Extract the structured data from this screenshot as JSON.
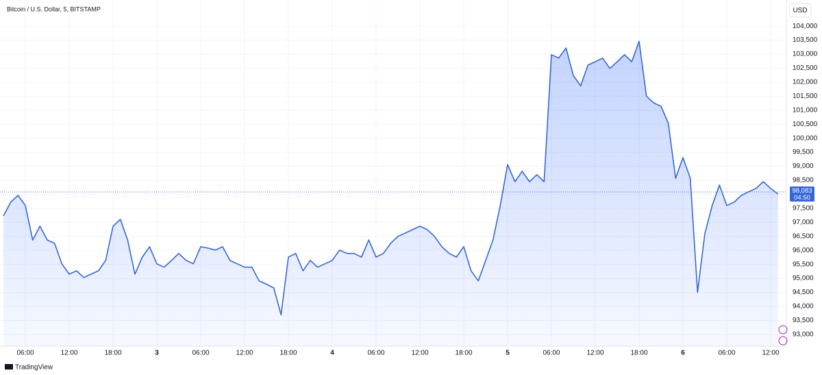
{
  "chart_data": {
    "type": "area",
    "title": "Bitcoin / U.S. Dollar, 5, BITSTAMP",
    "currency": "USD",
    "brand": "TradingView",
    "color": "#3567d6",
    "grid": true,
    "categories": [
      null,
      null,
      null,
      "06:00",
      null,
      null,
      null,
      null,
      null,
      "12:00",
      null,
      null,
      null,
      null,
      null,
      "18:00",
      null,
      null,
      null,
      null,
      null,
      "3",
      null,
      null,
      null,
      null,
      null,
      "06:00",
      null,
      null,
      null,
      null,
      null,
      "12:00",
      null,
      null,
      null,
      null,
      null,
      "18:00",
      null,
      null,
      null,
      null,
      null,
      "4",
      null,
      null,
      null,
      null,
      null,
      "06:00",
      null,
      null,
      null,
      null,
      null,
      "12:00",
      null,
      null,
      null,
      null,
      null,
      "18:00",
      null,
      null,
      null,
      null,
      null,
      "5",
      null,
      null,
      null,
      null,
      null,
      "06:00",
      null,
      null,
      null,
      null,
      null,
      "12:00",
      null,
      null,
      null,
      null,
      null,
      "18:00",
      null,
      null,
      null,
      null,
      null,
      "6",
      null,
      null,
      null,
      null,
      null,
      "06:00",
      null,
      null,
      null,
      null,
      null,
      "12:00",
      null
    ],
    "values": [
      97230,
      97720,
      97960,
      97600,
      96370,
      96860,
      96370,
      96250,
      95520,
      95150,
      95270,
      95030,
      95150,
      95270,
      95640,
      96860,
      97110,
      96370,
      95150,
      95760,
      96130,
      95520,
      95400,
      95640,
      95890,
      95640,
      95520,
      96130,
      96080,
      96010,
      96130,
      95640,
      95520,
      95400,
      95400,
      94910,
      94790,
      94660,
      93700,
      95760,
      95890,
      95270,
      95640,
      95400,
      95520,
      95640,
      96010,
      95890,
      95890,
      95760,
      96370,
      95760,
      95890,
      96250,
      96500,
      96620,
      96740,
      96860,
      96740,
      96500,
      96130,
      95890,
      95760,
      96130,
      95270,
      94910,
      95640,
      96370,
      97600,
      99060,
      98450,
      98820,
      98450,
      98700,
      98450,
      102980,
      102860,
      103220,
      102240,
      101870,
      102610,
      102730,
      102860,
      102490,
      102730,
      102980,
      102730,
      103460,
      101500,
      101260,
      101140,
      100530,
      98570,
      99310,
      98570,
      94500,
      96600,
      97600,
      98330,
      97600,
      97720,
      97960,
      98090,
      98210,
      98450,
      98210,
      98010
    ],
    "ylim": [
      92580,
      104810
    ],
    "yticks": [
      {
        "value": 93000,
        "label": "93,000"
      },
      {
        "value": 93500,
        "label": "93,500"
      },
      {
        "value": 94000,
        "label": "94,000"
      },
      {
        "value": 94500,
        "label": "94,500"
      },
      {
        "value": 95000,
        "label": "95,000"
      },
      {
        "value": 95500,
        "label": "95,500"
      },
      {
        "value": 96000,
        "label": "96,000"
      },
      {
        "value": 96500,
        "label": "96,500"
      },
      {
        "value": 97000,
        "label": "97,000"
      },
      {
        "value": 97500,
        "label": "97,500"
      },
      {
        "value": 98000,
        "label": "98,000"
      },
      {
        "value": 98500,
        "label": "98,500"
      },
      {
        "value": 99000,
        "label": "99,000"
      },
      {
        "value": 99500,
        "label": "99,500"
      },
      {
        "value": 100000,
        "label": "100,000"
      },
      {
        "value": 100500,
        "label": "100,500"
      },
      {
        "value": 101000,
        "label": "101,000"
      },
      {
        "value": 101500,
        "label": "101,500"
      },
      {
        "value": 102000,
        "label": "102,000"
      },
      {
        "value": 102500,
        "label": "102,500"
      },
      {
        "value": 103000,
        "label": "103,000"
      },
      {
        "value": 103500,
        "label": "103,500"
      },
      {
        "value": 104000,
        "label": "104,000"
      }
    ],
    "last_price": {
      "value": 98083,
      "label": "98,083"
    },
    "countdown": "04:50"
  }
}
